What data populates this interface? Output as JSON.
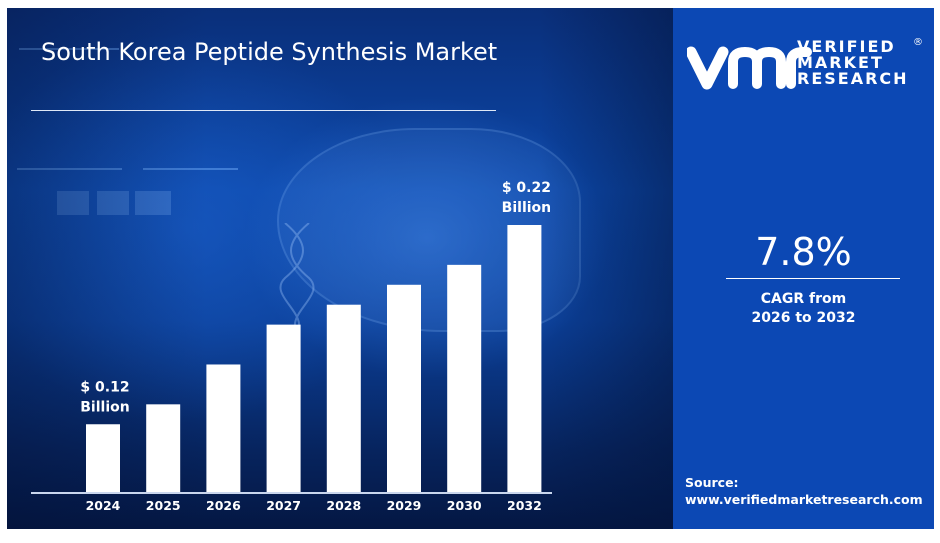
{
  "header": {
    "title": "South Korea Peptide Synthesis Market"
  },
  "brand": {
    "logo_mark": "vmr",
    "line1": "VERIFIED",
    "line2": "MARKET",
    "line3": "RESEARCH",
    "registered": "®"
  },
  "cagr": {
    "value": "7.8%",
    "label_line1": "CAGR from",
    "label_line2": "2026 to 2032"
  },
  "source": {
    "label": "Source:",
    "url": "www.verifiedmarketresearch.com"
  },
  "colors": {
    "brand_blue": "#0c48b4",
    "bar": "#ffffff",
    "text": "#ffffff"
  },
  "chart_data": {
    "type": "bar",
    "title": "South Korea Peptide Synthesis Market",
    "xlabel": "",
    "ylabel": "",
    "unit": "USD Billion",
    "categories": [
      "2024",
      "2025",
      "2026",
      "2027",
      "2028",
      "2029",
      "2030",
      "2032"
    ],
    "values": [
      0.12,
      0.13,
      0.15,
      0.17,
      0.18,
      0.19,
      0.2,
      0.22
    ],
    "annotations": [
      {
        "category": "2024",
        "line1": "$ 0.12",
        "line2": "Billion"
      },
      {
        "category": "2032",
        "line1": "$ 0.22",
        "line2": "Billion"
      }
    ],
    "grid": false,
    "legend": "none",
    "ylim": [
      0.086,
      0.22
    ]
  }
}
